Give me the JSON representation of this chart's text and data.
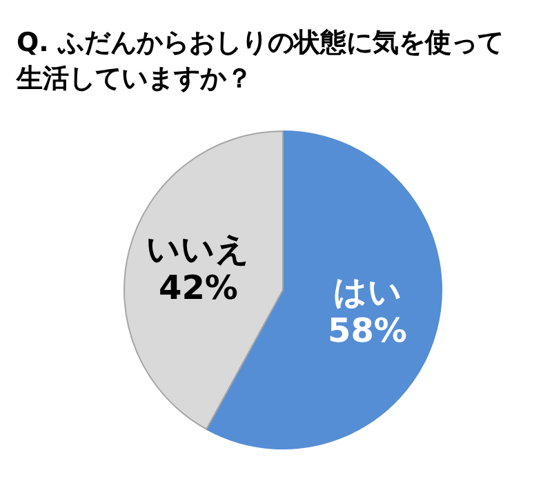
{
  "chart_data": {
    "type": "pie",
    "title": "Q. ふだんからおしりの状態に気を使って生活していますか？",
    "categories": [
      "はい",
      "いいえ"
    ],
    "values": [
      58,
      42
    ],
    "value_labels": [
      "58%",
      "42%"
    ],
    "colors": [
      "#558ed5",
      "#d9d9d9"
    ]
  }
}
